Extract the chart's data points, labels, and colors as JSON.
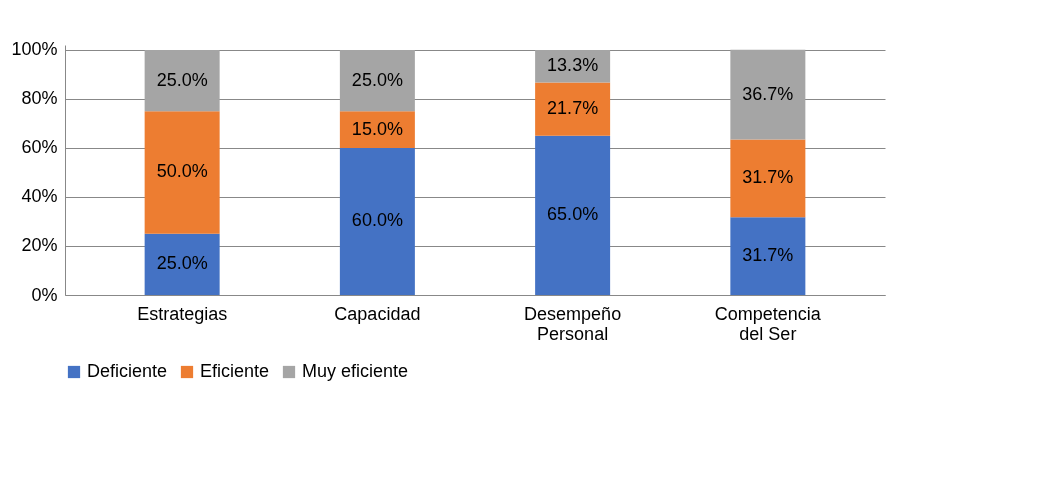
{
  "chart_data": {
    "type": "bar",
    "stacked": true,
    "categories": [
      "Estrategias",
      "Capacidad",
      "Desempeño Personal",
      "Competencia del Ser"
    ],
    "series": [
      {
        "name": "Deficiente",
        "color": "#4472c4",
        "values": [
          25,
          60,
          65,
          31.7
        ],
        "value_labels": [
          "25.0%",
          "60.0%",
          "65.0%",
          "31.7%"
        ]
      },
      {
        "name": "Eficiente",
        "color": "#ed7d31",
        "values": [
          50,
          15,
          21.7,
          31.7
        ],
        "value_labels": [
          "50.0%",
          "15.0%",
          "21.7%",
          "31.7%"
        ]
      },
      {
        "name": "Muy eficiente",
        "color": "#a5a5a5",
        "values": [
          25,
          25,
          13.3,
          36.7
        ],
        "value_labels": [
          "25.0%",
          "25.0%",
          "13.3%",
          "36.7%"
        ]
      }
    ],
    "ylim": [
      0,
      102
    ],
    "yticks": [
      {
        "value": 0,
        "label": "0%"
      },
      {
        "value": 20,
        "label": "20%"
      },
      {
        "value": 40,
        "label": "40%"
      },
      {
        "value": 60,
        "label": "60%"
      },
      {
        "value": 80,
        "label": "80%"
      },
      {
        "value": 100,
        "label": "100%"
      }
    ],
    "grid": "y",
    "legend": "bottom"
  }
}
